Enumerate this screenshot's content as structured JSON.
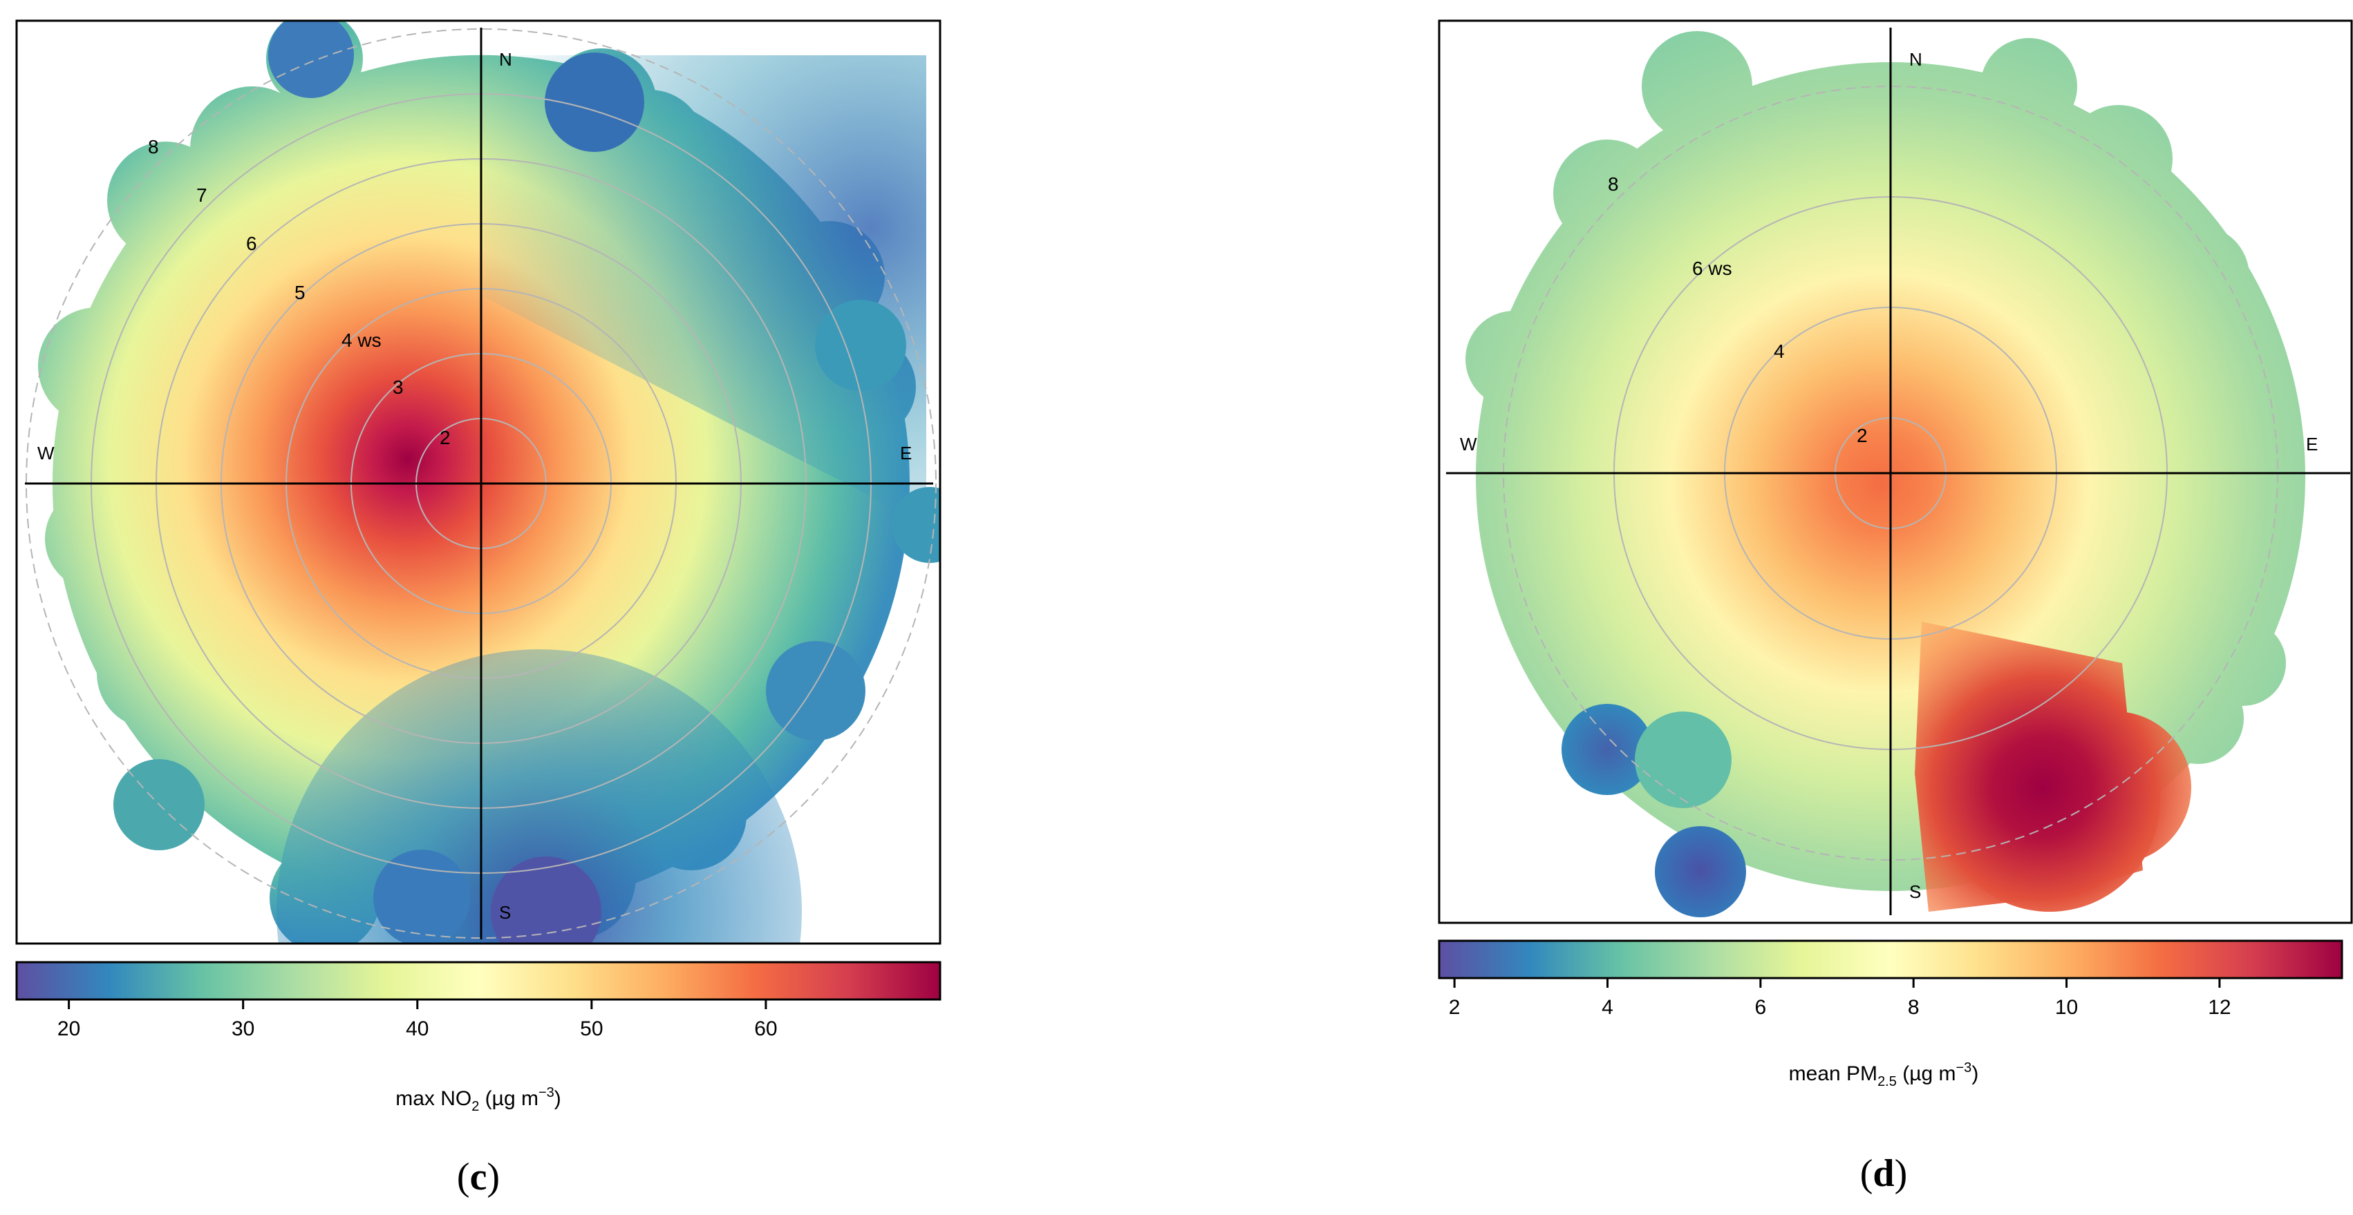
{
  "panels": [
    {
      "id": "c",
      "letter_open": "(",
      "letter": "c",
      "letter_close": ")",
      "compass": {
        "north": "N",
        "south": "S",
        "east": "E",
        "west": "W"
      },
      "ring_labels": [
        "2",
        "3",
        "4 ws",
        "5",
        "6",
        "7",
        "8"
      ],
      "colorbar": {
        "ticks": [
          "20",
          "30",
          "40",
          "50",
          "60"
        ],
        "label_prefix": "max NO",
        "label_sub": "2",
        "label_unit": " (µg m",
        "label_sup": "−3",
        "label_close": ")"
      }
    },
    {
      "id": "d",
      "letter_open": "(",
      "letter": "d",
      "letter_close": ")",
      "compass": {
        "north": "N",
        "south": "S",
        "east": "E",
        "west": "W"
      },
      "ring_labels": [
        "2",
        "4",
        "6 ws",
        "8"
      ],
      "colorbar": {
        "ticks": [
          "2",
          "4",
          "6",
          "8",
          "10",
          "12"
        ],
        "label_prefix": "mean PM",
        "label_sub": "2.5",
        "label_unit": " (µg m",
        "label_sup": "−3",
        "label_close": ")"
      }
    }
  ],
  "chart_data": [
    {
      "type": "heatmap",
      "subtype": "polar plot",
      "panel": "c",
      "variable": "max NO2 (µg m−3)",
      "radial_variable": "ws",
      "radial_ticks": [
        2,
        3,
        4,
        5,
        6,
        7,
        8
      ],
      "color_range": [
        17,
        70
      ],
      "colorbar_ticks": [
        20,
        30,
        40,
        50,
        60
      ],
      "colormap": [
        "#5e4fa2",
        "#3288bd",
        "#66c2a5",
        "#abdda4",
        "#e6f598",
        "#ffffbf",
        "#fee08b",
        "#fdae61",
        "#f46d43",
        "#d53e4f",
        "#9e0142"
      ],
      "hotspot": {
        "direction": "W-NW",
        "wind_speed": 2,
        "value": 68
      },
      "grid": true
    },
    {
      "type": "heatmap",
      "subtype": "polar plot",
      "panel": "d",
      "variable": "mean PM2.5 (µg m−3)",
      "radial_variable": "ws",
      "radial_ticks": [
        2,
        4,
        6,
        8
      ],
      "color_range": [
        1.8,
        13.6
      ],
      "colorbar_ticks": [
        2,
        4,
        6,
        8,
        10,
        12
      ],
      "colormap": [
        "#5e4fa2",
        "#3288bd",
        "#66c2a5",
        "#abdda4",
        "#e6f598",
        "#ffffbf",
        "#fee08b",
        "#fdae61",
        "#f46d43",
        "#d53e4f",
        "#9e0142"
      ],
      "hotspot": {
        "direction": "SSE",
        "wind_speed": 5.5,
        "value": 13.5
      },
      "grid": true
    }
  ]
}
